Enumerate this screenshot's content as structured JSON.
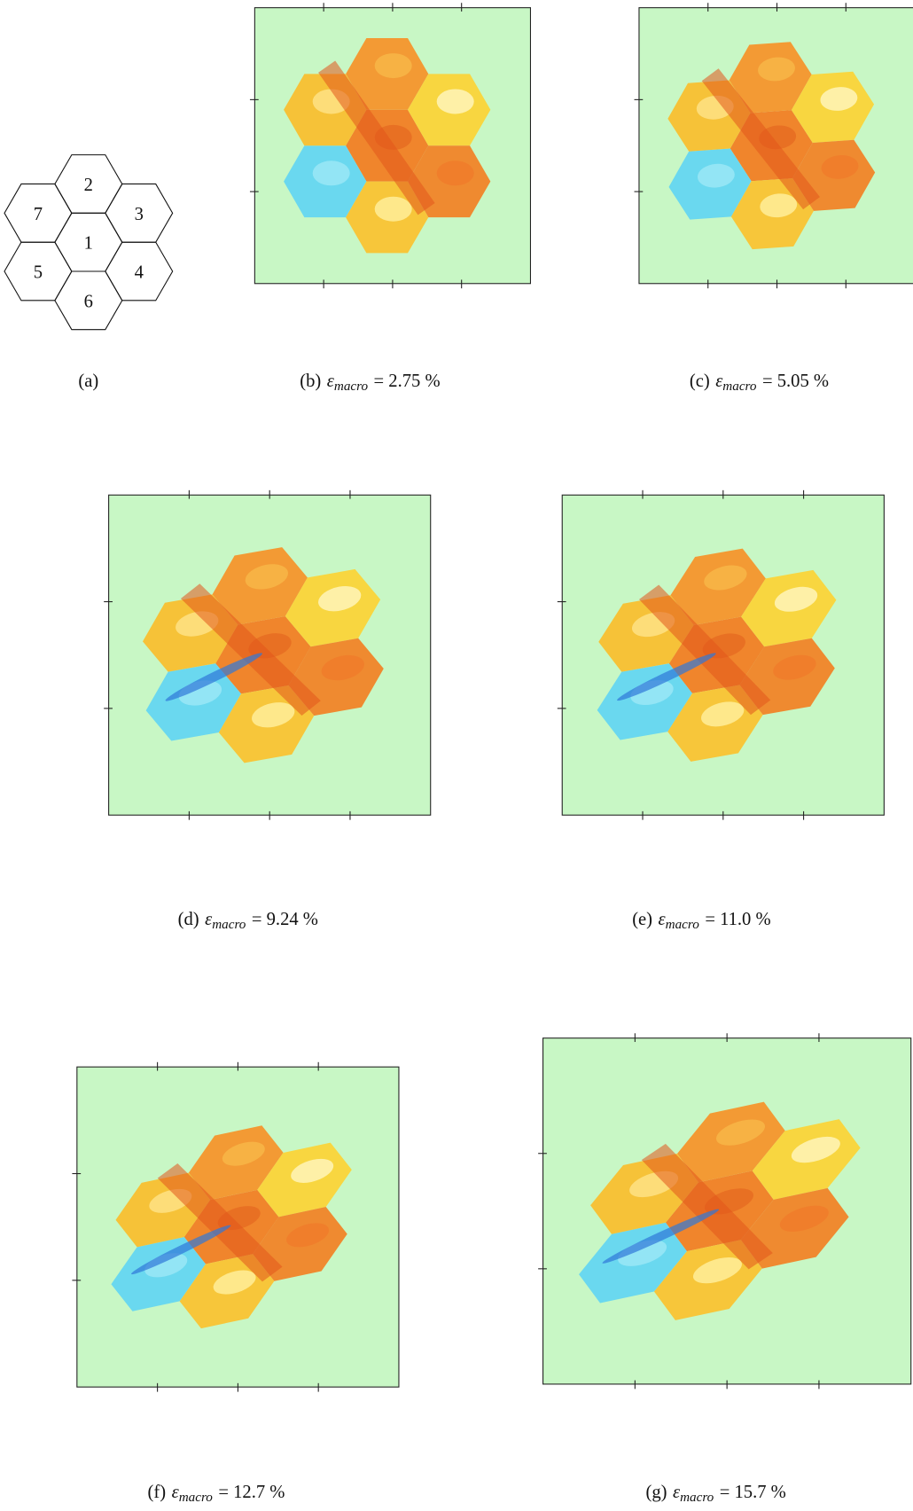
{
  "panel_a": {
    "label": "(a)",
    "grains": [
      "1",
      "2",
      "3",
      "4",
      "5",
      "6",
      "7"
    ]
  },
  "panels": [
    {
      "label": "(b)",
      "variable": "ε",
      "subscript": "macro",
      "relation": "= 2.75 %"
    },
    {
      "label": "(c)",
      "variable": "ε",
      "subscript": "macro",
      "relation": "= 5.05 %"
    },
    {
      "label": "(d)",
      "variable": "ε",
      "subscript": "macro",
      "relation": "= 9.24 %"
    },
    {
      "label": "(e)",
      "variable": "ε",
      "subscript": "macro",
      "relation": "= 11.0 %"
    },
    {
      "label": "(f)",
      "variable": "ε",
      "subscript": "macro",
      "relation": "= 12.7 %"
    },
    {
      "label": "(g)",
      "variable": "ε",
      "subscript": "macro",
      "relation": "= 15.7 %"
    }
  ]
}
